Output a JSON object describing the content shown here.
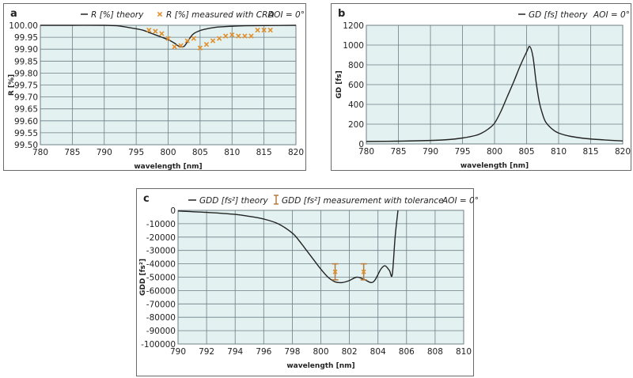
{
  "colors": {
    "plot_background": "#e3f1f0",
    "grid": "#6c7f86",
    "curve": "#222222",
    "measurement": "#e0902e",
    "errorbar": "#b57a3d"
  },
  "chart_data": [
    {
      "id": "a",
      "panel_letter": "a",
      "type": "line",
      "title": "",
      "xlabel": "wavelength [nm]",
      "ylabel": "R [%]",
      "xlim": [
        780,
        820
      ],
      "ylim": [
        99.5,
        100.0
      ],
      "xticks": [
        780,
        785,
        790,
        795,
        800,
        805,
        810,
        815,
        820
      ],
      "yticks": [
        99.5,
        99.55,
        99.6,
        99.65,
        99.7,
        99.75,
        99.8,
        99.85,
        99.9,
        99.95,
        100.0
      ],
      "ytick_labels": [
        "99.50",
        "99.55",
        "99.60",
        "99.65",
        "99.70",
        "99.75",
        "99.80",
        "99.85",
        "99.90",
        "99.95",
        "100.00"
      ],
      "grid": true,
      "legend_position": "top",
      "annotation": "AOI = 0°",
      "series": [
        {
          "name": "R [%] theory",
          "kind": "line",
          "x": [
            780,
            785,
            790,
            792,
            794,
            796,
            797,
            798,
            799,
            800,
            801,
            801.5,
            802,
            802.5,
            803,
            803.5,
            804,
            805,
            806,
            807,
            808,
            810,
            812,
            815,
            820
          ],
          "y": [
            100.0,
            100.0,
            100.0,
            99.998,
            99.99,
            99.98,
            99.97,
            99.96,
            99.95,
            99.94,
            99.925,
            99.915,
            99.91,
            99.912,
            99.93,
            99.95,
            99.965,
            99.978,
            99.985,
            99.99,
            99.993,
            99.996,
            99.998,
            99.999,
            100.0
          ]
        },
        {
          "name": "R [%] measured with CRD",
          "kind": "scatter",
          "marker": "x",
          "x": [
            797,
            798,
            799,
            800,
            801,
            802,
            803,
            804,
            805,
            806,
            807,
            808,
            809,
            810,
            811,
            812,
            813,
            814,
            815,
            816
          ],
          "y": [
            99.98,
            99.975,
            99.965,
            99.945,
            99.91,
            99.915,
            99.935,
            99.945,
            99.905,
            99.92,
            99.935,
            99.945,
            99.955,
            99.96,
            99.955,
            99.955,
            99.955,
            99.98,
            99.98,
            99.98
          ]
        }
      ]
    },
    {
      "id": "b",
      "panel_letter": "b",
      "type": "line",
      "title": "",
      "xlabel": "wavelength [nm]",
      "ylabel": "GD [fs]",
      "xlim": [
        780,
        820
      ],
      "ylim": [
        0,
        1200
      ],
      "xticks": [
        780,
        785,
        790,
        795,
        800,
        805,
        810,
        815,
        820
      ],
      "yticks": [
        0,
        200,
        400,
        600,
        800,
        1000,
        1200
      ],
      "ytick_labels": [
        "0",
        "200",
        "400",
        "600",
        "800",
        "1000",
        "1200"
      ],
      "grid": true,
      "legend_position": "top-right",
      "annotation": "AOI = 0°",
      "series": [
        {
          "name": "GD [fs] theory",
          "kind": "line",
          "x": [
            780,
            785,
            790,
            793,
            795,
            797,
            798,
            799,
            800,
            801,
            802,
            803,
            804,
            805,
            805.5,
            806,
            806.5,
            807,
            807.5,
            808,
            809,
            810,
            812,
            815,
            820
          ],
          "y": [
            25,
            28,
            35,
            45,
            60,
            85,
            110,
            150,
            210,
            330,
            480,
            630,
            790,
            930,
            985,
            880,
            620,
            420,
            300,
            220,
            150,
            110,
            75,
            50,
            30
          ]
        }
      ]
    },
    {
      "id": "c",
      "panel_letter": "c",
      "type": "line",
      "title": "",
      "xlabel": "wavelength [nm]",
      "ylabel": "GDD [fs²]",
      "xlim": [
        790,
        810
      ],
      "ylim": [
        -100000,
        0
      ],
      "xticks": [
        790,
        792,
        794,
        796,
        798,
        800,
        802,
        804,
        806,
        808,
        810
      ],
      "yticks": [
        0,
        -10000,
        -20000,
        -30000,
        -40000,
        -50000,
        -60000,
        -70000,
        -80000,
        -90000,
        -100000
      ],
      "ytick_labels": [
        "0",
        "-10000",
        "-20000",
        "-30000",
        "-40000",
        "-50000",
        "-60000",
        "-70000",
        "-80000",
        "-90000",
        "-100000"
      ],
      "grid": true,
      "legend_position": "top",
      "annotation": "AOI = 0°",
      "series": [
        {
          "name": "GDD [fs²] theory",
          "kind": "line",
          "x": [
            790,
            792,
            794,
            795,
            796,
            797,
            798,
            798.5,
            799,
            799.5,
            800,
            800.5,
            801,
            801.5,
            802,
            802.5,
            803,
            803.5,
            803.8,
            804.2,
            804.5,
            804.8,
            805,
            805.2,
            805.4
          ],
          "y": [
            -500,
            -1500,
            -3000,
            -4500,
            -6500,
            -10000,
            -17000,
            -23000,
            -30000,
            -37000,
            -44000,
            -50000,
            -53500,
            -54000,
            -52500,
            -50000,
            -51500,
            -54000,
            -52000,
            -44000,
            -41500,
            -45000,
            -48000,
            -20000,
            0
          ]
        },
        {
          "name": "GDD [fs²] measurement with tolerance",
          "kind": "errorbar",
          "x": [
            801,
            803
          ],
          "y": [
            -46000,
            -46000
          ],
          "yerr_low": [
            -52000,
            -52000
          ],
          "yerr_high": [
            -40000,
            -40000
          ]
        }
      ]
    }
  ]
}
